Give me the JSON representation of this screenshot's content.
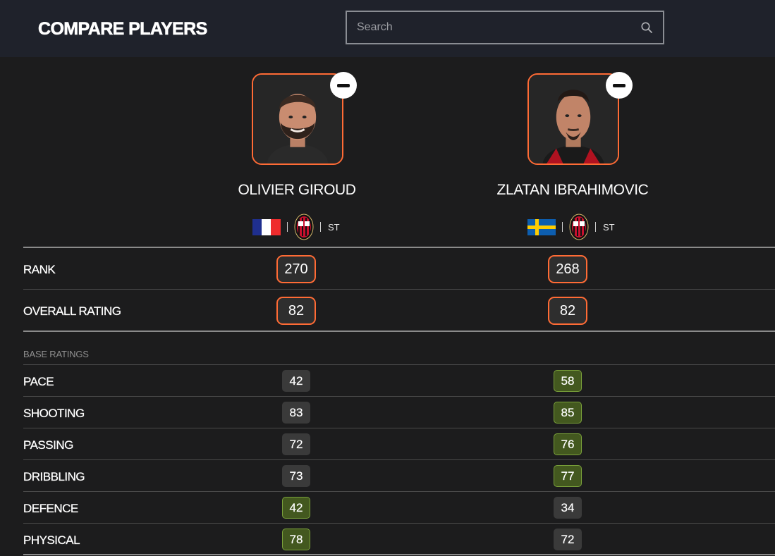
{
  "header": {
    "title": "COMPARE PLAYERS",
    "search_placeholder": "Search",
    "search_value": ""
  },
  "players": [
    {
      "name": "OLIVIER GIROUD",
      "nation_flag": "france-flag",
      "club_badge": "ac-milan-badge",
      "position": "ST",
      "rank": "270",
      "overall_rating": "82",
      "stats": {
        "pace": "42",
        "shooting": "83",
        "passing": "72",
        "dribbling": "73",
        "defence": "42",
        "physical": "78"
      }
    },
    {
      "name": "ZLATAN IBRAHIMOVIC",
      "nation_flag": "sweden-flag",
      "club_badge": "ac-milan-badge",
      "position": "ST",
      "rank": "268",
      "overall_rating": "82",
      "stats": {
        "pace": "58",
        "shooting": "85",
        "passing": "76",
        "dribbling": "77",
        "defence": "34",
        "physical": "72"
      }
    }
  ],
  "labels": {
    "rank": "RANK",
    "overall_rating": "OVERALL RATING",
    "base_ratings": "BASE RATINGS",
    "pace": "PACE",
    "shooting": "SHOOTING",
    "passing": "PASSING",
    "dribbling": "DRIBBLING",
    "defence": "DEFENCE",
    "physical": "PHYSICAL"
  },
  "colors": {
    "accent": "#ff6b35",
    "better_stat": "#43581f",
    "neutral_stat": "#3a3a3a",
    "background": "#1c1c1d",
    "header": "#1f222b"
  }
}
